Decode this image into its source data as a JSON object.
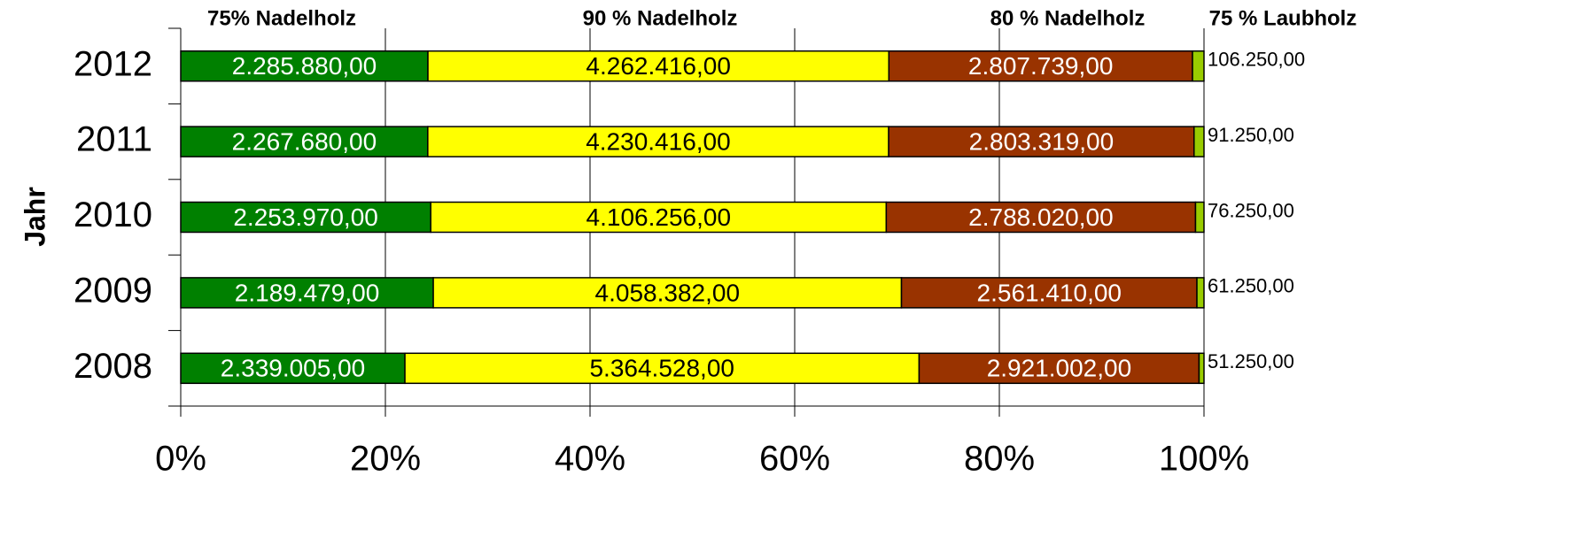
{
  "chart_data": {
    "type": "stacked_percent_barh",
    "y_label": "Jahr",
    "categories": [
      "2012",
      "2011",
      "2010",
      "2009",
      "2008"
    ],
    "series": [
      {
        "name": "75% Nadelholz",
        "color": "#008000",
        "values": [
          2285880,
          2267680,
          2253970,
          2189479,
          2339005
        ],
        "value_labels": [
          "2.285.880,00",
          "2.267.680,00",
          "2.253.970,00",
          "2.189.479,00",
          "2.339.005,00"
        ]
      },
      {
        "name": "90 % Nadelholz",
        "color": "#ffff00",
        "values": [
          4262416,
          4230416,
          4106256,
          4058382,
          5364528
        ],
        "value_labels": [
          "4.262.416,00",
          "4.230.416,00",
          "4.106.256,00",
          "4.058.382,00",
          "5.364.528,00"
        ]
      },
      {
        "name": "80 % Nadelholz",
        "color": "#993300",
        "values": [
          2807739,
          2803319,
          2788020,
          2561410,
          2921002
        ],
        "value_labels": [
          "2.807.739,00",
          "2.803.319,00",
          "2.788.020,00",
          "2.561.410,00",
          "2.921.002,00"
        ]
      },
      {
        "name": "75 % Laubholz",
        "color": "#99cc00",
        "values": [
          106250,
          91250,
          76250,
          61250,
          51250
        ],
        "value_labels": [
          "106.250,00",
          "91.250,00",
          "76.250,00",
          "61.250,00",
          "51.250,00"
        ]
      }
    ],
    "xlim": [
      0,
      100
    ],
    "xticks": [
      {
        "value": 0,
        "label": "0%"
      },
      {
        "value": 20,
        "label": "20%"
      },
      {
        "value": 40,
        "label": "40%"
      },
      {
        "value": 60,
        "label": "60%"
      },
      {
        "value": 80,
        "label": "80%"
      },
      {
        "value": 100,
        "label": "100%"
      }
    ],
    "grid": true
  }
}
